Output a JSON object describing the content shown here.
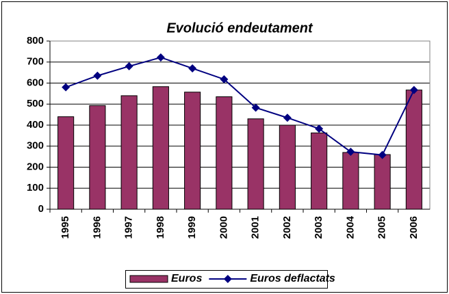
{
  "chart_data": {
    "type": "bar",
    "title": "Evolució endeutament",
    "categories": [
      "1995",
      "1996",
      "1997",
      "1998",
      "1999",
      "2000",
      "2001",
      "2002",
      "2003",
      "2004",
      "2005",
      "2006"
    ],
    "series": [
      {
        "name": "Euros",
        "type": "bar",
        "color": "#993366",
        "values": [
          440,
          493,
          540,
          583,
          557,
          535,
          430,
          400,
          363,
          270,
          260,
          567
        ]
      },
      {
        "name": "Euros deflactats",
        "type": "line",
        "color": "#000080",
        "marker": "diamond",
        "values": [
          580,
          635,
          680,
          722,
          670,
          618,
          483,
          435,
          383,
          273,
          258,
          567
        ]
      }
    ],
    "ylim": [
      0,
      800
    ],
    "yticks": [
      0,
      100,
      200,
      300,
      400,
      500,
      600,
      700,
      800
    ],
    "grid": true,
    "legend": "bottom"
  }
}
